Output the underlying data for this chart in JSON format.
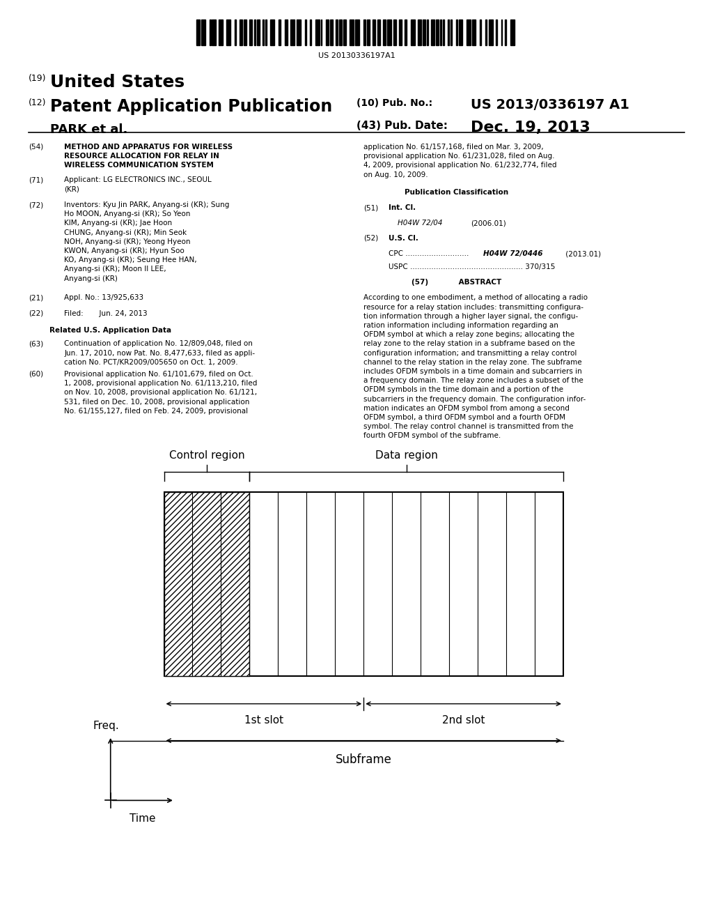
{
  "background_color": "#ffffff",
  "barcode_text": "US 20130336197A1",
  "header_left_small": "(19)",
  "header_left_title": "United States",
  "header_left_subtitle_num": "(12)",
  "header_left_subtitle": "Patent Application Publication",
  "header_left_assignee": "PARK et al.",
  "header_right_pub_num_label": "(10) Pub. No.:",
  "header_right_pub_num": "US 2013/0336197 A1",
  "header_right_date_label": "(43) Pub. Date:",
  "header_right_date": "Dec. 19, 2013",
  "diagram": {
    "total_columns": 14,
    "hatched_columns": 3,
    "control_region_label": "Control region",
    "data_region_label": "Data region",
    "slot1_label": "1st slot",
    "slot2_label": "2nd slot",
    "subframe_label": "Subframe",
    "freq_label": "Freq.",
    "time_label": "Time"
  }
}
